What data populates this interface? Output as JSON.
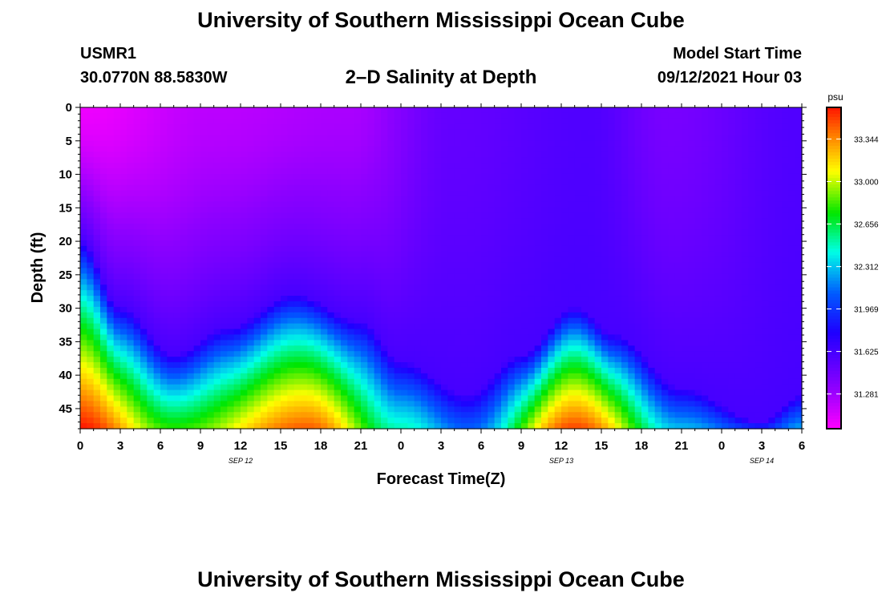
{
  "header": {
    "title": "University of Southern Mississippi Ocean Cube",
    "station_id": "USMR1",
    "coords": "30.0770N  88.5830W",
    "model_label": "Model Start Time",
    "model_time": "09/12/2021 Hour 03"
  },
  "footer": {
    "title": "University of Southern Mississippi Ocean Cube"
  },
  "chart_data": {
    "type": "heatmap",
    "title": "2–D Salinity at Depth",
    "xlabel": "Forecast Time(Z)",
    "ylabel": "Depth (ft)",
    "x_range_hours": [
      0,
      54
    ],
    "x_tick_step_hours": 3,
    "x_tick_labels": [
      "0",
      "3",
      "6",
      "9",
      "12",
      "15",
      "18",
      "21",
      "0",
      "3",
      "6",
      "9",
      "12",
      "15",
      "18",
      "21",
      "0",
      "3",
      "6"
    ],
    "date_labels": [
      {
        "text": "SEP 12",
        "hour": 12
      },
      {
        "text": "SEP 13",
        "hour": 36
      },
      {
        "text": "SEP 14",
        "hour": 51
      }
    ],
    "y_range_ft": [
      0,
      48
    ],
    "y_ticks": [
      "0",
      "5",
      "10",
      "15",
      "20",
      "25",
      "30",
      "35",
      "40",
      "45"
    ],
    "colorbar": {
      "unit": "psu",
      "min": 31.0,
      "max": 33.6,
      "tick_labels": [
        "31.281",
        "31.625",
        "31.969",
        "32.312",
        "32.656",
        "33.000",
        "33.344"
      ]
    },
    "interface_depth_ft": [
      {
        "t": 0,
        "d": 20
      },
      {
        "t": 3,
        "d": 30
      },
      {
        "t": 7,
        "d": 37
      },
      {
        "t": 11,
        "d": 33
      },
      {
        "t": 16,
        "d": 28
      },
      {
        "t": 21,
        "d": 32
      },
      {
        "t": 24,
        "d": 38
      },
      {
        "t": 29,
        "d": 43
      },
      {
        "t": 33,
        "d": 37
      },
      {
        "t": 37,
        "d": 30
      },
      {
        "t": 40,
        "d": 34
      },
      {
        "t": 45,
        "d": 42
      },
      {
        "t": 51,
        "d": 47
      },
      {
        "t": 54,
        "d": 43
      }
    ],
    "surface_salinity": [
      {
        "t": 0,
        "s": 31.05
      },
      {
        "t": 10,
        "s": 31.2
      },
      {
        "t": 20,
        "s": 31.25
      },
      {
        "t": 28,
        "s": 31.5
      },
      {
        "t": 38,
        "s": 31.58
      },
      {
        "t": 44,
        "s": 31.42
      },
      {
        "t": 54,
        "s": 31.58
      }
    ],
    "bottom_salinity": [
      {
        "t": 0,
        "s": 33.6
      },
      {
        "t": 7,
        "s": 32.8
      },
      {
        "t": 17,
        "s": 33.45
      },
      {
        "t": 24,
        "s": 32.5
      },
      {
        "t": 29,
        "s": 32.1
      },
      {
        "t": 37,
        "s": 33.5
      },
      {
        "t": 45,
        "s": 32.3
      },
      {
        "t": 51,
        "s": 31.95
      },
      {
        "t": 54,
        "s": 32.25
      }
    ]
  }
}
